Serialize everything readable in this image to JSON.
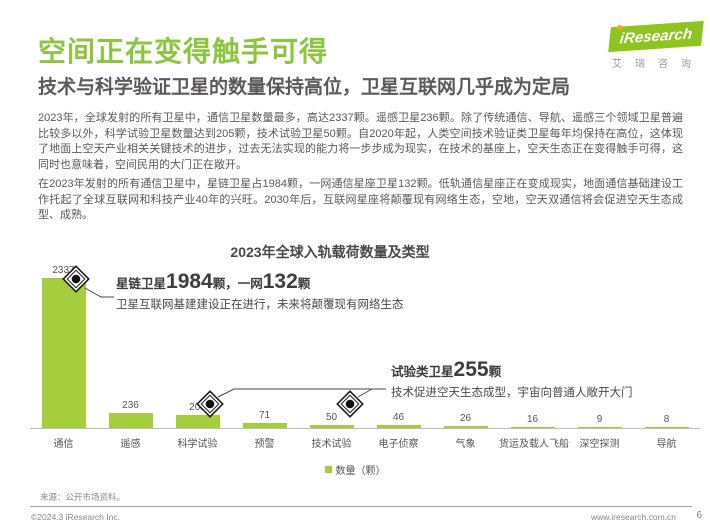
{
  "logo": {
    "brand": "iResearch",
    "brand_cn": "艾瑞咨询"
  },
  "header": {
    "title": "空间正在变得触手可得",
    "subtitle": "技术与科学验证卫星的数量保持高位，卫星互联网几乎成为定局"
  },
  "paragraphs": {
    "p1": "2023年，全球发射的所有卫星中，通信卫星数量最多，高达2337颗。遥感卫星236颗。除了传统通信、导航、遥感三个领域卫星普遍比较多以外，科学试验卫星数量达到205颗，技术试验卫星50颗。自2020年起，人类空间技术验证类卫星每年均保持在高位，这体现了地面上空天产业相关关键技术的进步，过去无法实现的能力将一步步成为现实，在技术的基座上，空天生态正在变得触手可得，这同时也意味着，空间民用的大门正在敞开。",
    "p2": "在2023年发射的所有通信卫星中，星链卫星占1984颗，一网通信星座卫星132颗。低轨通信星座正在变成现实，地面通信基础建设工作托起了全球互联网和科技产业40年的兴旺。2030年后，互联网星座将颠覆现有网络生态，空地，空天双通信将会促进空天生态成型、成熟。"
  },
  "chart_data": {
    "type": "bar",
    "title": "2023年全球入轨载荷数量及类型",
    "categories": [
      "通信",
      "遥感",
      "科学试验",
      "预警",
      "技术试验",
      "电子侦察",
      "气象",
      "货运及载人飞船",
      "深空探测",
      "导航"
    ],
    "values": [
      2337,
      236,
      205,
      71,
      50,
      46,
      26,
      16,
      9,
      8
    ],
    "legend": "数量（颗）",
    "ylim": [
      0,
      2400
    ],
    "grid": false,
    "legend_position": "bottom-center",
    "bar_color": "#a5cd3c",
    "annotations": [
      {
        "prefix": "星链卫星",
        "num1": "1984",
        "mid": "颗，一网",
        "num2": "132",
        "unit": "颗",
        "desc": "卫星互联网基建建设正在进行，未来将颠覆现有网络生态"
      },
      {
        "prefix": "试验类卫星",
        "num1": "255",
        "unit": "颗",
        "desc": "技术促进空天生态成型，宇宙向普通人敞开大门"
      }
    ]
  },
  "footer": {
    "source": "来源：公开市场资料。",
    "copyright": "©2024.3 iResearch Inc.",
    "website": "www.iresearch.com.cn",
    "page": "6"
  },
  "colors": {
    "title_green": "#8cc63f",
    "bar_green": "#a5cd3c",
    "logo_green": "#8fc320",
    "logo_dot_orange": "#f5a31a",
    "dark_text": "#5a5858"
  }
}
